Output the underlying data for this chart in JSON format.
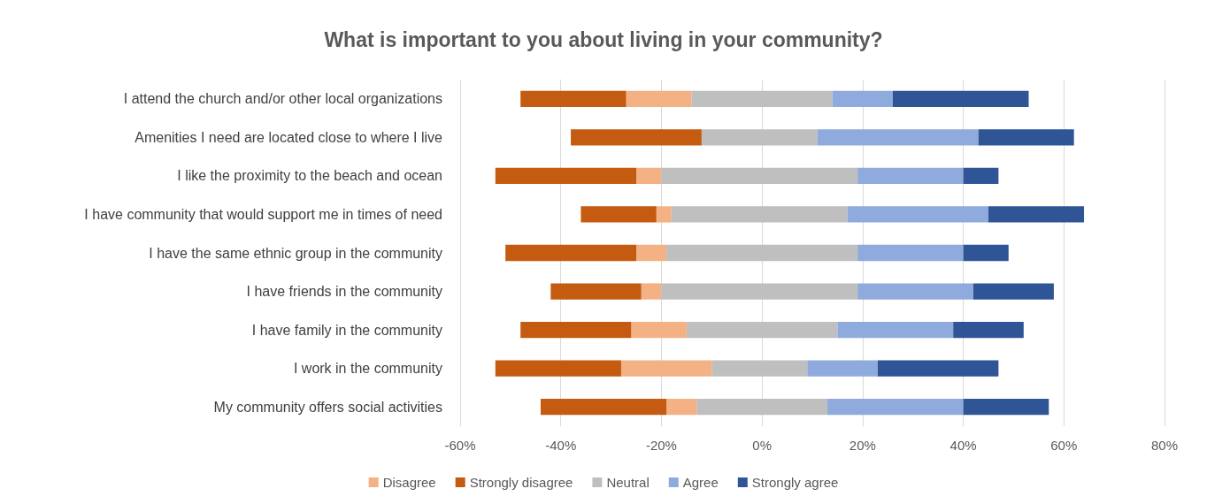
{
  "chart_data": {
    "type": "bar",
    "orientation": "horizontal",
    "title": "What is important to you about living in your community?",
    "categories": [
      "I attend the church and/or other local organizations",
      "Amenities I need are located close to where I live",
      "I like the proximity to the beach and ocean",
      "I have community that would support me in times of need",
      "I have the same ethnic group in the community",
      "I have friends in the community",
      "I have family in the community",
      "I work in the community",
      "My community offers social activities"
    ],
    "series": [
      {
        "name": "Disagree",
        "color": "#f4b183",
        "values": [
          13,
          null,
          5,
          3,
          6,
          4,
          11,
          18,
          6
        ],
        "base": [
          -27,
          null,
          -25,
          -21,
          -25,
          -24,
          -26,
          -28,
          -19
        ]
      },
      {
        "name": "Strongly disagree",
        "color": "#c55a11",
        "values": [
          21,
          26,
          28,
          15,
          26,
          18,
          22,
          25,
          25
        ],
        "base": [
          -48,
          -38,
          -53,
          -36,
          -51,
          -42,
          -48,
          -53,
          -44
        ]
      },
      {
        "name": "Neutral",
        "color": "#bfbfbf",
        "values": [
          28,
          23,
          39,
          35,
          38,
          39,
          30,
          19,
          26
        ],
        "base": [
          -14,
          -12,
          -20,
          -18,
          -19,
          -20,
          -15,
          -10,
          -13
        ]
      },
      {
        "name": "Agree",
        "color": "#8faadc",
        "values": [
          12,
          32,
          21,
          28,
          21,
          23,
          23,
          14,
          27
        ],
        "base": [
          14,
          11,
          19,
          17,
          19,
          19,
          15,
          9,
          13
        ]
      },
      {
        "name": "Strongly agree",
        "color": "#2f5597",
        "values": [
          27,
          19,
          7,
          19,
          9,
          16,
          14,
          24,
          17
        ],
        "base": [
          26,
          43,
          40,
          45,
          40,
          42,
          38,
          23,
          40
        ]
      }
    ],
    "xlim": [
      -60,
      80
    ],
    "xticks": [
      {
        "value": -60,
        "label": "-60%"
      },
      {
        "value": -40,
        "label": "-40%"
      },
      {
        "value": -20,
        "label": "-20%"
      },
      {
        "value": 0,
        "label": "0%"
      },
      {
        "value": 20,
        "label": "20%"
      },
      {
        "value": 40,
        "label": "40%"
      },
      {
        "value": 60,
        "label": "60%"
      },
      {
        "value": 80,
        "label": "80%"
      }
    ],
    "grid": "x",
    "legend": "bottom"
  }
}
